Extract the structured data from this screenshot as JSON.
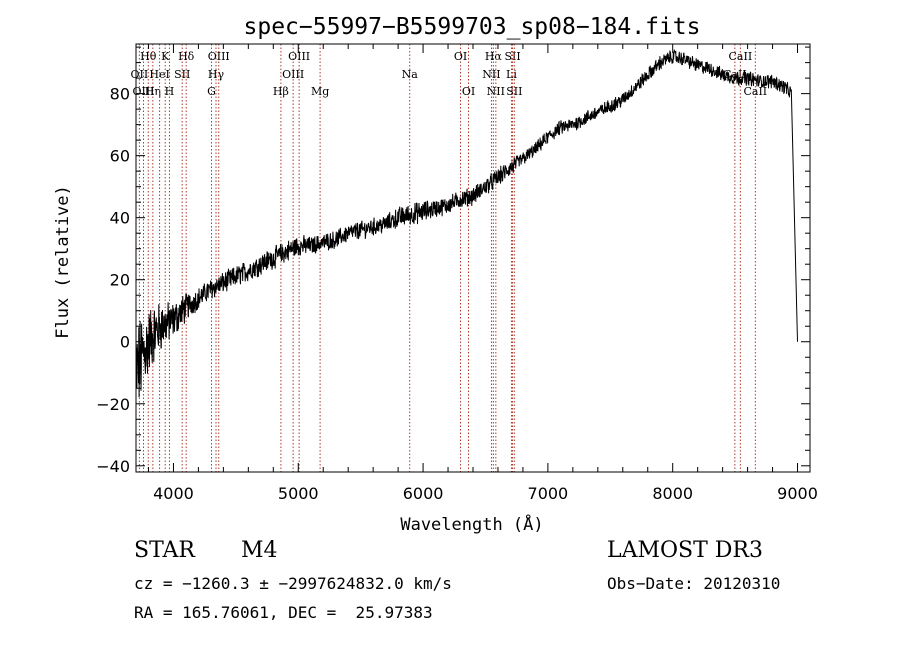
{
  "chart_data": {
    "type": "line",
    "title": "spec−55997−B5599703_sp08−184.fits",
    "xlabel": "Wavelength (Å)",
    "ylabel": "Flux (relative)",
    "xlim": [
      3700,
      9100
    ],
    "ylim": [
      -42,
      96
    ],
    "x_ticks": [
      4000,
      5000,
      6000,
      7000,
      8000,
      9000
    ],
    "y_ticks": [
      -40,
      -20,
      0,
      20,
      40,
      60,
      80
    ],
    "y_tick_labels": [
      "−40",
      "−20",
      "0",
      "20",
      "40",
      "60",
      "80"
    ],
    "series": [
      {
        "name": "flux",
        "x": [
          3700,
          3750,
          3800,
          3850,
          3900,
          3950,
          4000,
          4050,
          4100,
          4200,
          4300,
          4400,
          4500,
          4600,
          4700,
          4800,
          4900,
          5000,
          5100,
          5200,
          5300,
          5400,
          5500,
          5600,
          5700,
          5800,
          5900,
          6000,
          6100,
          6200,
          6300,
          6400,
          6500,
          6600,
          6700,
          6800,
          6900,
          7000,
          7100,
          7200,
          7300,
          7400,
          7500,
          7600,
          7700,
          7800,
          7900,
          8000,
          8100,
          8200,
          8300,
          8400,
          8500,
          8600,
          8700,
          8800,
          8900,
          8950,
          9000
        ],
        "y": [
          -10,
          -5,
          0,
          3,
          5,
          6,
          7,
          9,
          11,
          14,
          17,
          19,
          21,
          23,
          25,
          27,
          29,
          31,
          31,
          32,
          33,
          35,
          36,
          37,
          38,
          40,
          41,
          42,
          43,
          44,
          46,
          47,
          50,
          53,
          56,
          59,
          62,
          66,
          69,
          70,
          72,
          74,
          76,
          78,
          82,
          86,
          90,
          92,
          91,
          89,
          88,
          86,
          85,
          85,
          84,
          84,
          82,
          80,
          0
        ],
        "noise": [
          14,
          12,
          10,
          8,
          7,
          6,
          5,
          5,
          4,
          3,
          3,
          3,
          3,
          3,
          3,
          3,
          3,
          3,
          2.5,
          2.5,
          2.5,
          2.5,
          2.5,
          2.5,
          2.5,
          3,
          3,
          3,
          2.5,
          2.5,
          2.5,
          2.5,
          2.5,
          2.5,
          2.5,
          2,
          2,
          2,
          2,
          2,
          2,
          2,
          2,
          2,
          2,
          2,
          2,
          2,
          2,
          2,
          2,
          2,
          2,
          2,
          2,
          2,
          2,
          2,
          2
        ]
      }
    ],
    "lines": [
      {
        "label": "Hθ",
        "wave": 3798,
        "row": 0
      },
      {
        "label": "OII",
        "wave": 3727,
        "row": 1
      },
      {
        "label": "Hη",
        "wave": 3835,
        "row": 2
      },
      {
        "label": "OIII",
        "wave": 3760,
        "row": 2
      },
      {
        "label": "HeI",
        "wave": 3889,
        "row": 1
      },
      {
        "label": "K",
        "wave": 3934,
        "row": 0
      },
      {
        "label": "H",
        "wave": 3968,
        "row": 2
      },
      {
        "label": "SII",
        "wave": 4070,
        "row": 1
      },
      {
        "label": "Hδ",
        "wave": 4102,
        "row": 0
      },
      {
        "label": "G",
        "wave": 4305,
        "row": 2
      },
      {
        "label": "Hγ",
        "wave": 4341,
        "row": 1
      },
      {
        "label": "OIII",
        "wave": 4363,
        "row": 0
      },
      {
        "label": "Hβ",
        "wave": 4861,
        "row": 2
      },
      {
        "label": "OIII",
        "wave": 4959,
        "row": 1
      },
      {
        "label": "OIII",
        "wave": 5007,
        "row": 0
      },
      {
        "label": "Mg",
        "wave": 5175,
        "row": 2
      },
      {
        "label": "Na",
        "wave": 5893,
        "row": 1
      },
      {
        "label": "OI",
        "wave": 6300,
        "row": 0
      },
      {
        "label": "OI",
        "wave": 6364,
        "row": 2
      },
      {
        "label": "NII",
        "wave": 6548,
        "row": 1
      },
      {
        "label": "Hα",
        "wave": 6563,
        "row": 0
      },
      {
        "label": "NII",
        "wave": 6583,
        "row": 2
      },
      {
        "label": "Li",
        "wave": 6708,
        "row": 1
      },
      {
        "label": "SII",
        "wave": 6717,
        "row": 0
      },
      {
        "label": "SII",
        "wave": 6731,
        "row": 2
      },
      {
        "label": "CaII",
        "wave": 8498,
        "row": 1
      },
      {
        "label": "CaII",
        "wave": 8542,
        "row": 0
      },
      {
        "label": "CaII",
        "wave": 8662,
        "row": 2
      }
    ]
  },
  "info": {
    "object_type": "STAR",
    "subclass": "M4",
    "survey": "LAMOST DR3",
    "cz": "cz = −1260.3 ± −2997624832.0 km/s",
    "obs_date": "Obs−Date: 20120310",
    "coords": "RA = 165.76061, DEC =  25.97383"
  }
}
